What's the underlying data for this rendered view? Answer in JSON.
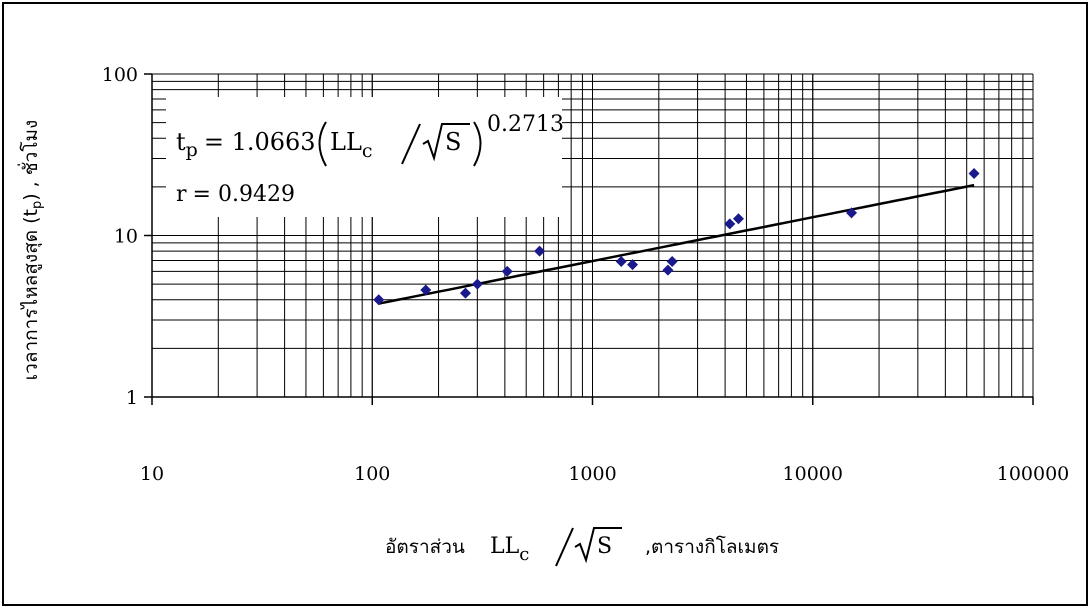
{
  "chart_data": {
    "type": "scatter",
    "x_scale": "log",
    "y_scale": "log",
    "xlim": [
      10,
      100000
    ],
    "ylim": [
      1,
      100
    ],
    "x_ticks": [
      "10",
      "100",
      "1000",
      "10000",
      "100000"
    ],
    "y_ticks": [
      "1",
      "10",
      "100"
    ],
    "grid": true,
    "ylabel": "เวลาการไหลสูงสุด (t",
    "ylabel_sub": "p",
    "ylabel_tail": ") , ชั่วโมง",
    "xlabel_prefix": "อัตราส่วน",
    "xlabel_suffix": ",ตารางกิโลเมตร",
    "series": [
      {
        "marker": "diamond",
        "color": "#1a1a8c",
        "points": [
          {
            "x": 107,
            "y": 4.0
          },
          {
            "x": 175,
            "y": 4.6
          },
          {
            "x": 265,
            "y": 4.4
          },
          {
            "x": 300,
            "y": 5.0
          },
          {
            "x": 410,
            "y": 6.0
          },
          {
            "x": 575,
            "y": 8.0
          },
          {
            "x": 1350,
            "y": 6.9
          },
          {
            "x": 1520,
            "y": 6.6
          },
          {
            "x": 2200,
            "y": 6.1
          },
          {
            "x": 2300,
            "y": 6.9
          },
          {
            "x": 4200,
            "y": 11.8
          },
          {
            "x": 4600,
            "y": 12.7
          },
          {
            "x": 15000,
            "y": 13.8
          },
          {
            "x": 54000,
            "y": 24.2
          }
        ]
      }
    ],
    "trendline": {
      "a": 1.0663,
      "b": 0.2713,
      "x_from": 107,
      "x_to": 54000,
      "color": "#000000"
    },
    "annotation": {
      "equation_lhs": "t",
      "equation_lhs_sub": "p",
      "equation_eq": "= 1.0663",
      "equation_body": "LL",
      "equation_body_sub": "c",
      "equation_root": "S",
      "equation_exp": "0.2713",
      "r_label": "r",
      "r_eq": "= 0.9429"
    }
  }
}
